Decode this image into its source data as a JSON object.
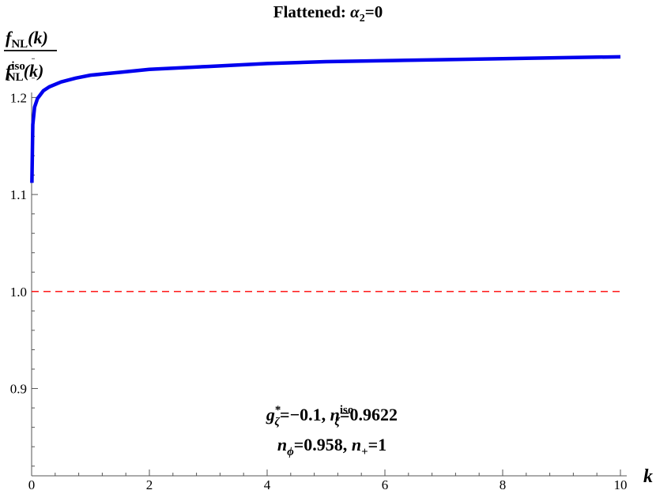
{
  "chart_data": {
    "type": "line",
    "title": "Flattened: α2=0",
    "title_parts": {
      "prefix": "Flattened: ",
      "symbol": "α",
      "sub": "2",
      "suffix": "=0"
    },
    "xlabel": "k",
    "ylabel": {
      "numerator": {
        "f": "f",
        "sub": "NL",
        "arg": "(k)"
      },
      "denominator": {
        "f": "f",
        "sub": "NL",
        "sup": "iso",
        "arg": "(k)"
      }
    },
    "xlim": [
      0,
      10
    ],
    "ylim": [
      0.81,
      1.25
    ],
    "x_ticks": [
      0,
      2,
      4,
      6,
      8,
      10
    ],
    "x_tick_labels": [
      "0",
      "2",
      "4",
      "6",
      "8",
      "10"
    ],
    "y_ticks": [
      0.9,
      1.0,
      1.1,
      1.2
    ],
    "y_tick_labels": [
      "0.9",
      "1.0",
      "1.1",
      "1.2"
    ],
    "grid": false,
    "series": [
      {
        "color": "#0000ee",
        "style": "solid",
        "x": [
          0.005,
          0.02,
          0.05,
          0.1,
          0.2,
          0.3,
          0.5,
          0.75,
          1,
          1.5,
          2,
          3,
          4,
          5,
          6,
          7,
          8,
          9,
          10
        ],
        "y": [
          1.112,
          1.172,
          1.19,
          1.199,
          1.207,
          1.211,
          1.216,
          1.22,
          1.223,
          1.226,
          1.229,
          1.232,
          1.235,
          1.237,
          1.238,
          1.239,
          1.24,
          1.241,
          1.242
        ]
      },
      {
        "color": "#ff0000",
        "style": "dashed",
        "x": [
          0,
          10
        ],
        "y": [
          1.0,
          1.0
        ]
      }
    ],
    "annotations": [
      {
        "id": "line1",
        "parts": [
          {
            "t": "g",
            "it": true
          },
          {
            "t": "*",
            "sup": true
          },
          {
            "t": "ζ",
            "sub": true,
            "it": true
          },
          {
            "t": "=−0.1, "
          },
          {
            "t": "n",
            "it": true
          },
          {
            "t": "iso",
            "sup": true
          },
          {
            "t": "ζ",
            "sub": true,
            "it": true
          },
          {
            "t": "=0.9622"
          }
        ]
      },
      {
        "id": "line2",
        "parts": [
          {
            "t": "n",
            "it": true
          },
          {
            "t": "ϕ",
            "sub": true,
            "it": true
          },
          {
            "t": "=0.958, "
          },
          {
            "t": "n",
            "it": true
          },
          {
            "t": "+",
            "sub": true
          },
          {
            "t": "=1"
          }
        ]
      }
    ]
  }
}
